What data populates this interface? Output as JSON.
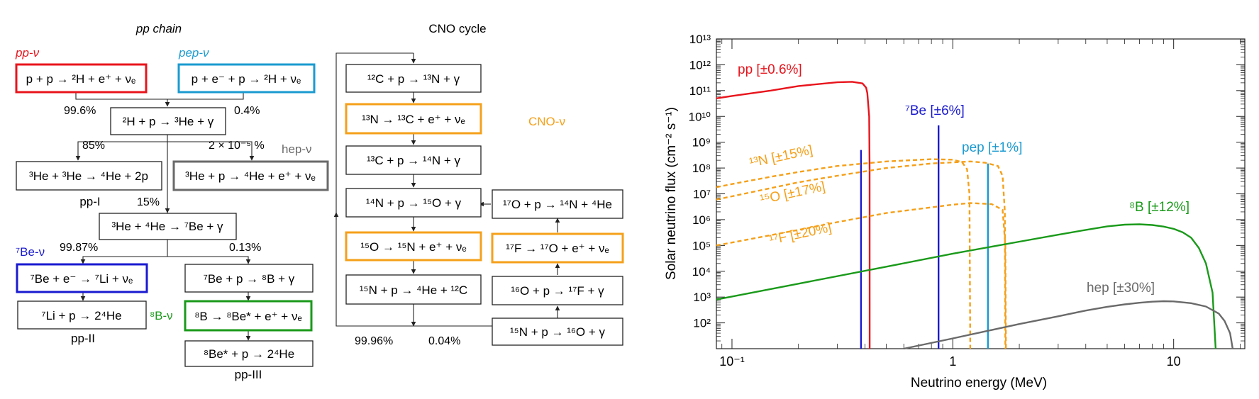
{
  "colors": {
    "pp": "#e8141c",
    "pep": "#1a9ad0",
    "be7": "#1a1ad0",
    "b8": "#1a9a1a",
    "cno": "#f5a01a",
    "hep": "#6a6a6a",
    "ink": "#222222"
  },
  "diagram": {
    "pp_title": "pp chain",
    "cno_title": "CNO cycle",
    "labels": {
      "pp_nu": "pp-ν",
      "pep_nu": "pep-ν",
      "hep_nu": "hep-ν",
      "be7_nu": "⁷Be-ν",
      "b8_nu": "⁸B-ν",
      "cno_nu": "CNO-ν",
      "pp_I": "pp-I",
      "pp_II": "pp-II",
      "pp_III": "pp-III"
    },
    "branches": {
      "b1": "99.6%",
      "b2": "0.4%",
      "b3": "85%",
      "b4": "2 × 10⁻⁵ %",
      "b5": "15%",
      "b6": "99.87%",
      "b7": "0.13%",
      "b8": "99.96%",
      "b9": "0.04%"
    },
    "reactions": {
      "pp": "p + p → ²H + e⁺ + νₑ",
      "pep": "p + e⁻ + p → ²H + νₑ",
      "d_p": "²H + p → ³He + γ",
      "he3he3": "³He + ³He → ⁴He + 2p",
      "hep": "³He + p → ⁴He + e⁺ + νₑ",
      "he3he4": "³He + ⁴He → ⁷Be + γ",
      "be7e": "⁷Be + e⁻ → ⁷Li + νₑ",
      "be7p": "⁷Be + p → ⁸B + γ",
      "li7p": "⁷Li + p → 2⁴He",
      "b8d": "⁸B → ⁸Be* + e⁺ + νₑ",
      "be8": "⁸Be* + p → 2⁴He",
      "c12p": "¹²C + p → ¹³N + γ",
      "n13": "¹³N → ¹³C + e⁺ + νₑ",
      "c13p": "¹³C + p → ¹⁴N + γ",
      "n14p": "¹⁴N + p → ¹⁵O + γ",
      "o15": "¹⁵O → ¹⁵N + e⁺ + νₑ",
      "n15p_a": "¹⁵N + p → ⁴He + ¹²C",
      "o17p": "¹⁷O + p → ¹⁴N + ⁴He",
      "f17": "¹⁷F → ¹⁷O + e⁺ + νₑ",
      "o16p": "¹⁶O + p → ¹⁷F + γ",
      "n15p_b": "¹⁵N + p → ¹⁶O + γ"
    }
  },
  "chart_data": {
    "type": "line",
    "xlabel": "Neutrino energy (MeV)",
    "ylabel": "Solar neutrino flux (cm⁻² s⁻¹)",
    "x_scale": "log",
    "y_scale": "log",
    "xlim": [
      0.085,
      21
    ],
    "ylim": [
      10,
      10000000000000.0
    ],
    "x_ticks": [
      {
        "v": 0.1,
        "l": "10⁻¹"
      },
      {
        "v": 1,
        "l": "1"
      },
      {
        "v": 10,
        "l": "10"
      }
    ],
    "y_ticks": [
      {
        "v": 100.0,
        "l": "10²"
      },
      {
        "v": 1000.0,
        "l": "10³"
      },
      {
        "v": 10000.0,
        "l": "10⁴"
      },
      {
        "v": 100000.0,
        "l": "10⁵"
      },
      {
        "v": 1000000.0,
        "l": "10⁶"
      },
      {
        "v": 10000000.0,
        "l": "10⁷"
      },
      {
        "v": 100000000.0,
        "l": "10⁸"
      },
      {
        "v": 1000000000.0,
        "l": "10⁹"
      },
      {
        "v": 10000000000.0,
        "l": "10¹⁰"
      },
      {
        "v": 100000000000.0,
        "l": "10¹¹"
      },
      {
        "v": 1000000000000.0,
        "l": "10¹²"
      },
      {
        "v": 10000000000000.0,
        "l": "10¹³"
      }
    ],
    "series": [
      {
        "key": "pp",
        "label": "pp [±0.6%]",
        "color": "#e8141c",
        "style": "solid",
        "points": [
          [
            0.085,
            50000000000.0
          ],
          [
            0.1,
            62000000000.0
          ],
          [
            0.15,
            100000000000.0
          ],
          [
            0.2,
            150000000000.0
          ],
          [
            0.3,
            210000000000.0
          ],
          [
            0.35,
            220000000000.0
          ],
          [
            0.39,
            190000000000.0
          ],
          [
            0.405,
            130000000000.0
          ],
          [
            0.41,
            80000000000.0
          ],
          [
            0.418,
            10000000000.0
          ],
          [
            0.42,
            100000000.0
          ],
          [
            0.4202,
            10
          ]
        ]
      },
      {
        "key": "be7a",
        "label": "",
        "color": "#1a1ad0",
        "style": "line",
        "points": [
          [
            0.384,
            10
          ],
          [
            0.384,
            500000000.0
          ]
        ]
      },
      {
        "key": "be7b",
        "label": "⁷Be [±6%]",
        "color": "#1a1ad0",
        "style": "line",
        "points": [
          [
            0.862,
            10
          ],
          [
            0.862,
            4500000000.0
          ]
        ]
      },
      {
        "key": "pep",
        "label": "pep [±1%]",
        "color": "#1a9ad0",
        "style": "line",
        "points": [
          [
            1.442,
            10
          ],
          [
            1.442,
            150000000.0
          ]
        ]
      },
      {
        "key": "n13",
        "label": "¹³N [±15%]",
        "color": "#f5a01a",
        "style": "dashed",
        "points": [
          [
            0.085,
            18000000.0
          ],
          [
            0.1,
            24000000.0
          ],
          [
            0.15,
            46000000.0
          ],
          [
            0.2,
            70000000.0
          ],
          [
            0.3,
            120000000.0
          ],
          [
            0.5,
            180000000.0
          ],
          [
            0.8,
            220000000.0
          ],
          [
            1.0,
            210000000.0
          ],
          [
            1.1,
            170000000.0
          ],
          [
            1.16,
            90000000.0
          ],
          [
            1.19,
            10000000.0
          ],
          [
            1.199,
            10
          ]
        ]
      },
      {
        "key": "o15",
        "label": "¹⁵O [±17%]",
        "color": "#f5a01a",
        "style": "dashed",
        "points": [
          [
            0.085,
            6000000.0
          ],
          [
            0.1,
            8000000.0
          ],
          [
            0.2,
            28000000.0
          ],
          [
            0.3,
            50000000.0
          ],
          [
            0.5,
            100000000.0
          ],
          [
            0.8,
            150000000.0
          ],
          [
            1.2,
            180000000.0
          ],
          [
            1.4,
            160000000.0
          ],
          [
            1.6,
            120000000.0
          ],
          [
            1.68,
            50000000.0
          ],
          [
            1.72,
            2000000.0
          ],
          [
            1.73,
            10
          ]
        ]
      },
      {
        "key": "f17",
        "label": "¹⁷F [±20%]",
        "color": "#f5a01a",
        "style": "dashed",
        "points": [
          [
            0.085,
            100000.0
          ],
          [
            0.1,
            130000.0
          ],
          [
            0.2,
            400000.0
          ],
          [
            0.3,
            800000.0
          ],
          [
            0.5,
            1800000.0
          ],
          [
            0.8,
            3000000.0
          ],
          [
            1.0,
            3800000.0
          ],
          [
            1.2,
            4400000.0
          ],
          [
            1.5,
            4000000.0
          ],
          [
            1.68,
            2400000.0
          ],
          [
            1.73,
            100000.0
          ],
          [
            1.74,
            10
          ]
        ]
      },
      {
        "key": "b8",
        "label": "⁸B [±12%]",
        "color": "#1a9a1a",
        "style": "solid",
        "points": [
          [
            0.085,
            800.0
          ],
          [
            0.1,
            1050.0
          ],
          [
            0.2,
            3300.0
          ],
          [
            0.5,
            15000.0
          ],
          [
            1,
            48000.0
          ],
          [
            2,
            140000.0
          ],
          [
            3,
            260000.0
          ],
          [
            4,
            400000.0
          ],
          [
            5,
            550000.0
          ],
          [
            6,
            640000.0
          ],
          [
            7,
            660000.0
          ],
          [
            8,
            620000.0
          ],
          [
            9,
            540000.0
          ],
          [
            10,
            440000.0
          ],
          [
            11,
            320000.0
          ],
          [
            12,
            200000.0
          ],
          [
            13,
            80000.0
          ],
          [
            14,
            20000.0
          ],
          [
            15,
            1500.0
          ],
          [
            15.5,
            10
          ]
        ]
      },
      {
        "key": "hep",
        "label": "hep [±30%]",
        "color": "#6a6a6a",
        "style": "solid",
        "points": [
          [
            0.6,
            10
          ],
          [
            1,
            25
          ],
          [
            2,
            90
          ],
          [
            3,
            180
          ],
          [
            4,
            300
          ],
          [
            5,
            420
          ],
          [
            6,
            520
          ],
          [
            7,
            600
          ],
          [
            8,
            660
          ],
          [
            9,
            690
          ],
          [
            10,
            680
          ],
          [
            12,
            580
          ],
          [
            14,
            430
          ],
          [
            16,
            230
          ],
          [
            17,
            120
          ],
          [
            18,
            40
          ],
          [
            18.5,
            10
          ]
        ]
      }
    ]
  }
}
